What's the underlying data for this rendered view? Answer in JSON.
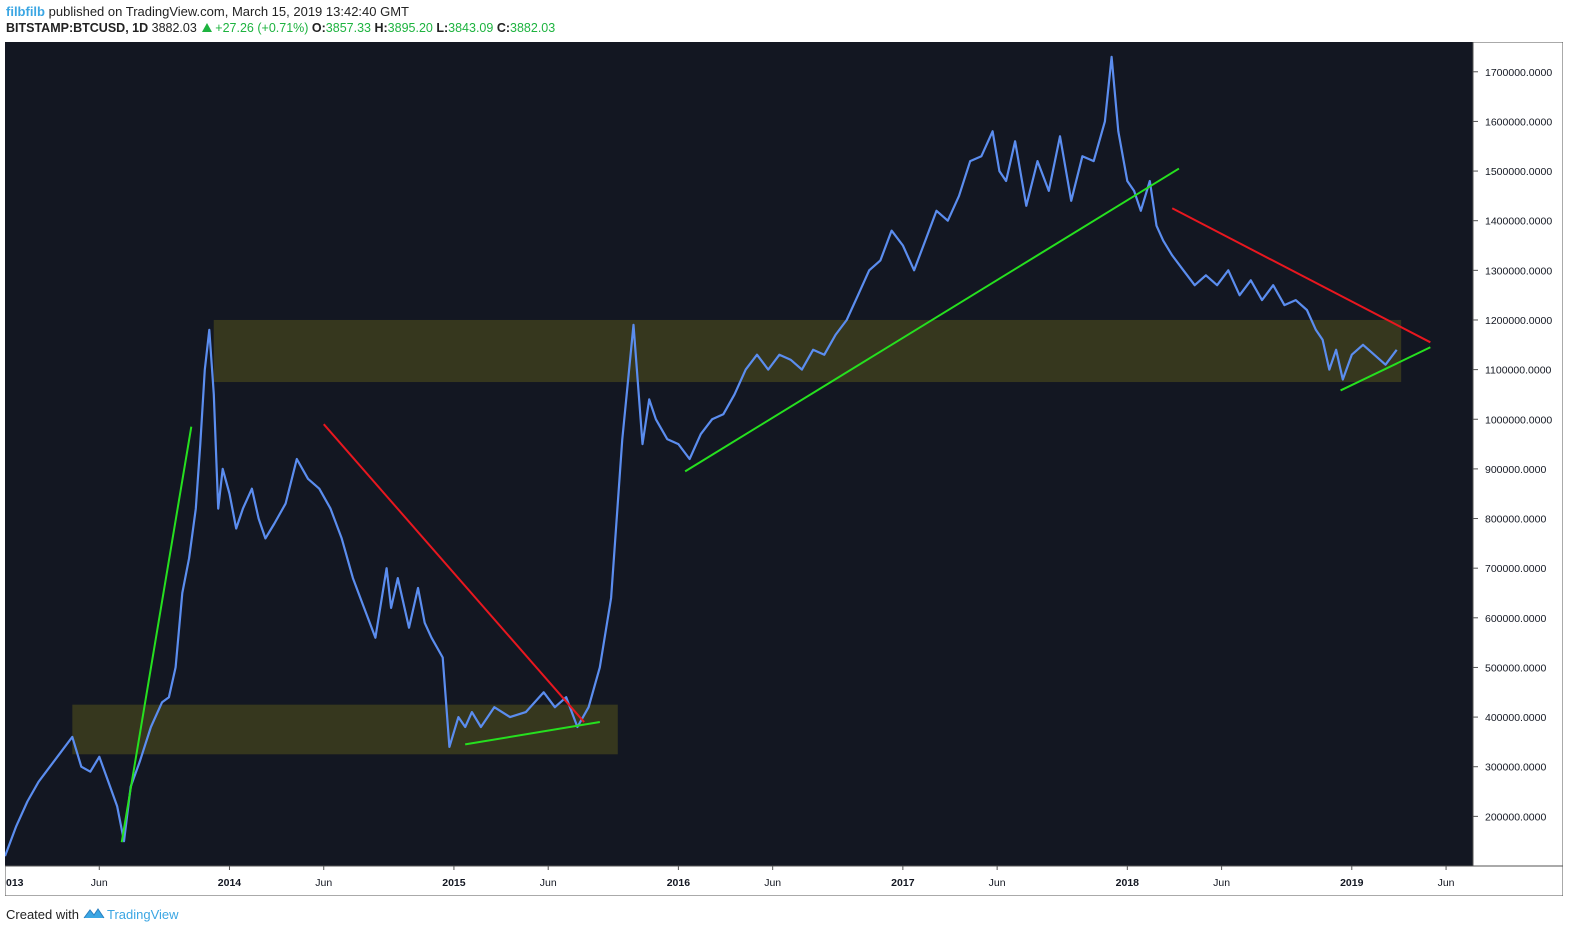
{
  "header": {
    "author": "filbfilb",
    "published_text": "published on TradingView.com, March 15, 2019 13:42:40 GMT",
    "symbol": "BITSTAMP:BTCUSD, 1D",
    "last_price": "3882.03",
    "change": "+27.26 (+0.71%)",
    "open_label": "O:",
    "open_value": "3857.33",
    "high_label": "H:",
    "high_value": "3895.20",
    "low_label": "L:",
    "low_value": "3843.09",
    "close_label": "C:",
    "close_value": "3882.03"
  },
  "footer": {
    "created_with": "Created with",
    "brand": "TradingView"
  },
  "colors": {
    "background": "#131722",
    "price_line": "#5b8def",
    "support_line": "#26e01f",
    "resistance_line": "#e8171f",
    "zone_fill": "#3d3d1d",
    "axis_text": "#131722",
    "up": "#1db33f"
  },
  "chart_data": {
    "type": "line",
    "x_axis_labels": [
      "013",
      "Jun",
      "2014",
      "Jun",
      "2015",
      "Jun",
      "2016",
      "Jun",
      "2017",
      "Jun",
      "2018",
      "Jun",
      "2019",
      "Jun"
    ],
    "x_axis_label_dates": [
      2013.0,
      2013.42,
      2014.0,
      2014.42,
      2015.0,
      2015.42,
      2016.0,
      2016.42,
      2017.0,
      2017.42,
      2018.0,
      2018.42,
      2019.0,
      2019.42
    ],
    "y_ticks": [
      "200000.0000",
      "300000.0000",
      "400000.0000",
      "500000.0000",
      "600000.0000",
      "700000.0000",
      "800000.0000",
      "900000.0000",
      "1000000.0000",
      "1100000.0000",
      "1200000.0000",
      "1300000.0000",
      "1400000.0000",
      "1500000.0000",
      "1600000.0000",
      "1700000.0000"
    ],
    "y_tick_values": [
      200000,
      300000,
      400000,
      500000,
      600000,
      700000,
      800000,
      900000,
      1000000,
      1100000,
      1200000,
      1300000,
      1400000,
      1500000,
      1600000,
      1700000
    ],
    "xlim": [
      2013.0,
      2019.54
    ],
    "ylim": [
      100000,
      1760000
    ],
    "series": [
      {
        "x": [
          2013.0,
          2013.05,
          2013.1,
          2013.15,
          2013.2,
          2013.25,
          2013.3,
          2013.34,
          2013.38,
          2013.42,
          2013.46,
          2013.5,
          2013.53,
          2013.56,
          2013.6,
          2013.65,
          2013.7,
          2013.73,
          2013.76,
          2013.79,
          2013.82,
          2013.85,
          2013.87,
          2013.89,
          2013.91,
          2013.93,
          2013.95,
          2013.97,
          2014.0,
          2014.03,
          2014.06,
          2014.1,
          2014.13,
          2014.16,
          2014.2,
          2014.25,
          2014.3,
          2014.35,
          2014.4,
          2014.45,
          2014.5,
          2014.55,
          2014.6,
          2014.65,
          2014.7,
          2014.72,
          2014.75,
          2014.8,
          2014.84,
          2014.87,
          2014.9,
          2014.95,
          2014.98,
          2015.02,
          2015.05,
          2015.08,
          2015.12,
          2015.18,
          2015.25,
          2015.32,
          2015.4,
          2015.45,
          2015.5,
          2015.55,
          2015.6,
          2015.65,
          2015.7,
          2015.75,
          2015.8,
          2015.84,
          2015.87,
          2015.9,
          2015.95,
          2016.0,
          2016.05,
          2016.1,
          2016.15,
          2016.2,
          2016.25,
          2016.3,
          2016.35,
          2016.4,
          2016.45,
          2016.5,
          2016.55,
          2016.6,
          2016.65,
          2016.7,
          2016.75,
          2016.8,
          2016.85,
          2016.9,
          2016.95,
          2017.0,
          2017.05,
          2017.1,
          2017.15,
          2017.2,
          2017.25,
          2017.3,
          2017.35,
          2017.4,
          2017.43,
          2017.46,
          2017.5,
          2017.55,
          2017.6,
          2017.65,
          2017.7,
          2017.75,
          2017.8,
          2017.85,
          2017.9,
          2017.93,
          2017.96,
          2018.0,
          2018.03,
          2018.06,
          2018.1,
          2018.13,
          2018.16,
          2018.2,
          2018.25,
          2018.3,
          2018.35,
          2018.4,
          2018.45,
          2018.5,
          2018.55,
          2018.6,
          2018.65,
          2018.7,
          2018.75,
          2018.8,
          2018.84,
          2018.87,
          2018.9,
          2018.93,
          2018.96,
          2019.0,
          2019.05,
          2019.1,
          2019.15,
          2019.2
        ],
        "y": [
          120000,
          180000,
          230000,
          270000,
          300000,
          330000,
          360000,
          300000,
          290000,
          320000,
          270000,
          220000,
          150000,
          260000,
          310000,
          380000,
          430000,
          440000,
          500000,
          650000,
          720000,
          820000,
          950000,
          1100000,
          1180000,
          1050000,
          820000,
          900000,
          850000,
          780000,
          820000,
          860000,
          800000,
          760000,
          790000,
          830000,
          920000,
          880000,
          860000,
          820000,
          760000,
          680000,
          620000,
          560000,
          700000,
          620000,
          680000,
          580000,
          660000,
          590000,
          560000,
          520000,
          340000,
          400000,
          380000,
          410000,
          380000,
          420000,
          400000,
          410000,
          450000,
          420000,
          440000,
          380000,
          420000,
          500000,
          640000,
          960000,
          1190000,
          950000,
          1040000,
          1000000,
          960000,
          950000,
          920000,
          970000,
          1000000,
          1010000,
          1050000,
          1100000,
          1130000,
          1100000,
          1130000,
          1120000,
          1100000,
          1140000,
          1130000,
          1170000,
          1200000,
          1250000,
          1300000,
          1320000,
          1380000,
          1350000,
          1300000,
          1360000,
          1420000,
          1400000,
          1450000,
          1520000,
          1530000,
          1580000,
          1500000,
          1480000,
          1560000,
          1430000,
          1520000,
          1460000,
          1570000,
          1440000,
          1530000,
          1520000,
          1600000,
          1730000,
          1580000,
          1480000,
          1460000,
          1420000,
          1480000,
          1390000,
          1360000,
          1330000,
          1300000,
          1270000,
          1290000,
          1270000,
          1300000,
          1250000,
          1280000,
          1240000,
          1270000,
          1230000,
          1240000,
          1220000,
          1180000,
          1160000,
          1100000,
          1140000,
          1080000,
          1130000,
          1150000,
          1130000,
          1110000,
          1140000
        ]
      }
    ],
    "trendlines": [
      {
        "kind": "support",
        "color": "green",
        "points": [
          [
            2013.52,
            148000
          ],
          [
            2013.83,
            985000
          ]
        ]
      },
      {
        "kind": "resistance",
        "color": "red",
        "points": [
          [
            2014.42,
            990000
          ],
          [
            2015.58,
            390000
          ]
        ]
      },
      {
        "kind": "support",
        "color": "green",
        "points": [
          [
            2015.05,
            345000
          ],
          [
            2015.65,
            390000
          ]
        ]
      },
      {
        "kind": "support",
        "color": "green",
        "points": [
          [
            2016.03,
            895000
          ],
          [
            2018.23,
            1505000
          ]
        ]
      },
      {
        "kind": "resistance",
        "color": "red",
        "points": [
          [
            2018.2,
            1425000
          ],
          [
            2019.35,
            1155000
          ]
        ]
      },
      {
        "kind": "support",
        "color": "green",
        "points": [
          [
            2018.95,
            1058000
          ],
          [
            2019.35,
            1145000
          ]
        ]
      }
    ],
    "zones": [
      {
        "x_range": [
          2013.3,
          2015.73
        ],
        "y_range": [
          325000,
          425000
        ]
      },
      {
        "x_range": [
          2013.93,
          2019.22
        ],
        "y_range": [
          1075000,
          1200000
        ]
      }
    ],
    "grid": false,
    "legend": "none"
  }
}
